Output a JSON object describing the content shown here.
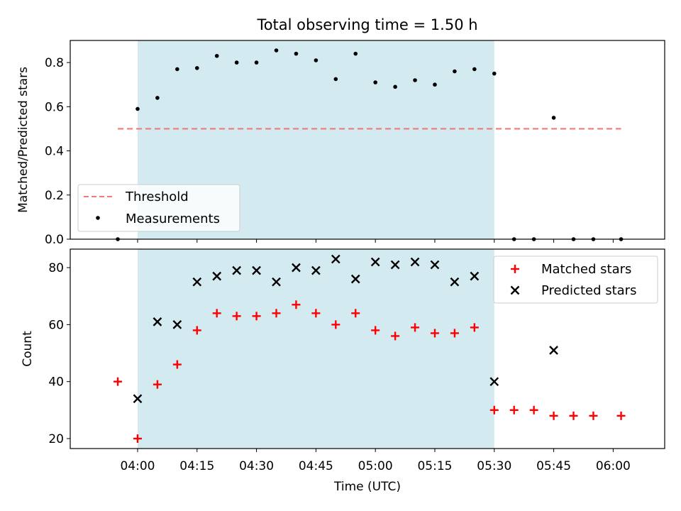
{
  "chart_data": [
    {
      "type": "scatter",
      "title": "Total observing time = 1.50 h",
      "xlabel": "",
      "ylabel": "Matched/Predicted stars",
      "ylim": [
        0,
        0.9
      ],
      "yticks": [
        0.0,
        0.2,
        0.4,
        0.6,
        0.8
      ],
      "ytick_labels": [
        "0.0",
        "0.2",
        "0.4",
        "0.6",
        "0.8"
      ],
      "observing_window": [
        "04:00",
        "05:30"
      ],
      "observing_window_color": "#d3eaf0",
      "threshold": {
        "name": "Threshold",
        "value": 0.5,
        "x_range": [
          "03:55",
          "06:02"
        ],
        "color": "#f07a7a",
        "style": "dashed"
      },
      "series": [
        {
          "name": "Measurements",
          "color": "#000000",
          "marker": "dot",
          "x": [
            "03:55",
            "04:00",
            "04:05",
            "04:10",
            "04:15",
            "04:20",
            "04:25",
            "04:30",
            "04:35",
            "04:40",
            "04:45",
            "04:50",
            "04:55",
            "05:00",
            "05:05",
            "05:10",
            "05:15",
            "05:20",
            "05:25",
            "05:30",
            "05:35",
            "05:40",
            "05:45",
            "05:50",
            "05:55",
            "06:02"
          ],
          "y": [
            0.0,
            0.59,
            0.64,
            0.77,
            0.775,
            0.83,
            0.8,
            0.8,
            0.855,
            0.84,
            0.81,
            0.725,
            0.84,
            0.71,
            0.69,
            0.72,
            0.7,
            0.76,
            0.77,
            0.75,
            0.0,
            0.0,
            0.55,
            0.0,
            0.0,
            0.0
          ]
        }
      ],
      "legend": {
        "position": "lower-left",
        "entries": [
          "Threshold",
          "Measurements"
        ]
      }
    },
    {
      "type": "scatter",
      "title": "",
      "xlabel": "Time (UTC)",
      "ylabel": "Count",
      "ylim": [
        16.5,
        86.5
      ],
      "xlim": [
        "03:43",
        "06:13"
      ],
      "yticks": [
        20,
        40,
        60,
        80
      ],
      "ytick_labels": [
        "20",
        "40",
        "60",
        "80"
      ],
      "xticks": [
        "04:00",
        "04:15",
        "04:30",
        "04:45",
        "05:00",
        "05:15",
        "05:30",
        "05:45",
        "06:00"
      ],
      "xtick_labels": [
        "04:00",
        "04:15",
        "04:30",
        "04:45",
        "05:00",
        "05:15",
        "05:30",
        "05:45",
        "06:00"
      ],
      "observing_window": [
        "04:00",
        "05:30"
      ],
      "series": [
        {
          "name": "Matched stars",
          "color": "#ff0000",
          "marker": "plus",
          "x": [
            "03:55",
            "04:00",
            "04:05",
            "04:10",
            "04:15",
            "04:20",
            "04:25",
            "04:30",
            "04:35",
            "04:40",
            "04:45",
            "04:50",
            "04:55",
            "05:00",
            "05:05",
            "05:10",
            "05:15",
            "05:20",
            "05:25",
            "05:30",
            "05:35",
            "05:40",
            "05:45",
            "05:50",
            "05:55",
            "06:02"
          ],
          "y": [
            40,
            20,
            39,
            46,
            58,
            64,
            63,
            63,
            64,
            67,
            64,
            60,
            64,
            58,
            56,
            59,
            57,
            57,
            59,
            30,
            30,
            30,
            28,
            28,
            28,
            28
          ]
        },
        {
          "name": "Predicted stars",
          "color": "#000000",
          "marker": "x",
          "x": [
            "04:00",
            "04:05",
            "04:10",
            "04:15",
            "04:20",
            "04:25",
            "04:30",
            "04:35",
            "04:40",
            "04:45",
            "04:50",
            "04:55",
            "05:00",
            "05:05",
            "05:10",
            "05:15",
            "05:20",
            "05:25",
            "05:30",
            "05:45"
          ],
          "y": [
            34,
            61,
            60,
            75,
            77,
            79,
            79,
            75,
            80,
            79,
            83,
            76,
            82,
            81,
            82,
            81,
            75,
            77,
            40,
            51
          ]
        }
      ],
      "legend": {
        "position": "top-right",
        "entries": [
          "Matched stars",
          "Predicted stars"
        ]
      }
    }
  ]
}
